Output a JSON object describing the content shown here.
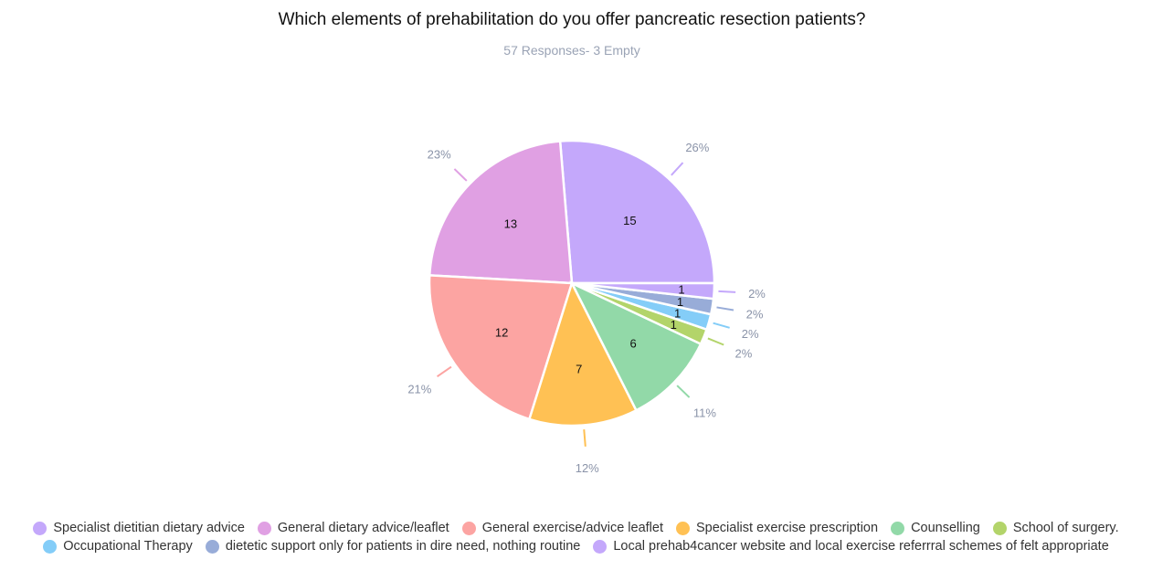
{
  "chart_data": {
    "type": "pie",
    "title": "Which elements of prehabilitation do you offer pancreatic resection patients?",
    "subtitle": "57 Responses- 3 Empty",
    "legend_position": "bottom",
    "slices": [
      {
        "label": "Specialist dietitian dietary advice",
        "value": 15,
        "percent": "26%",
        "color": "#c4a8fb"
      },
      {
        "label": "General dietary advice/leaflet",
        "value": 13,
        "percent": "23%",
        "color": "#e0a0e3"
      },
      {
        "label": "General exercise/advice leaflet",
        "value": 12,
        "percent": "21%",
        "color": "#fca4a2"
      },
      {
        "label": "Specialist exercise prescription",
        "value": 7,
        "percent": "12%",
        "color": "#ffc154"
      },
      {
        "label": "Counselling",
        "value": 6,
        "percent": "11%",
        "color": "#92d9a8"
      },
      {
        "label": "School of surgery.",
        "value": 1,
        "percent": "2%",
        "color": "#b3d46a"
      },
      {
        "label": "Occupational Therapy",
        "value": 1,
        "percent": "2%",
        "color": "#84cdf8"
      },
      {
        "label": "dietetic support only for patients in dire need, nothing routine",
        "value": 1,
        "percent": "2%",
        "color": "#98acd8"
      },
      {
        "label": "Local prehab4cancer website and local exercise referrral schemes of felt appropriate",
        "value": 1,
        "percent": "2%",
        "color": "#c4a8fb"
      }
    ]
  }
}
